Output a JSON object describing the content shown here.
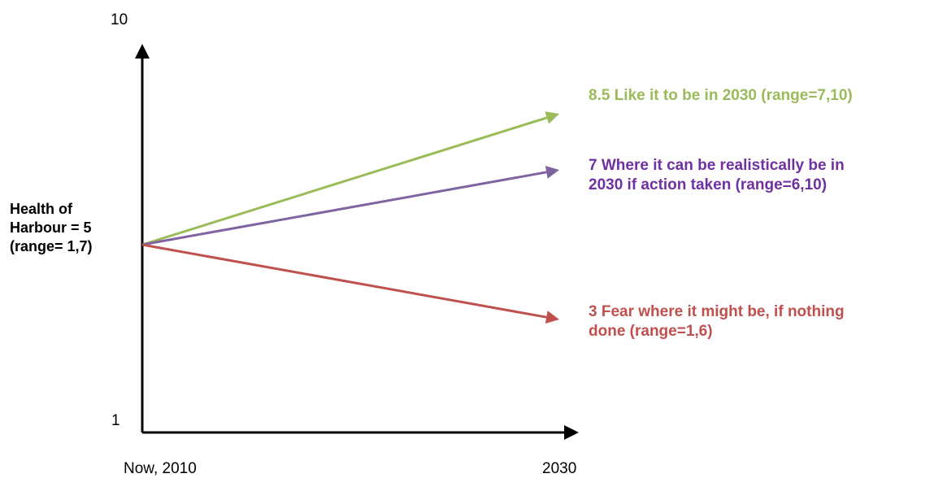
{
  "chart_data": {
    "type": "line",
    "title": "",
    "x": [
      "Now, 2010",
      "2030"
    ],
    "y_ticks": [
      "10",
      "1"
    ],
    "ylim": [
      1,
      10
    ],
    "ylabel": "",
    "start": {
      "value": 5,
      "label_lines": [
        "Health of",
        "Harbour = 5",
        "(range= 1,7)"
      ]
    },
    "series": [
      {
        "values": [
          5,
          8.5
        ],
        "color": "#9bbb59",
        "label_lines": [
          "8.5  Like it to be in 2030 (range=7,10)"
        ]
      },
      {
        "values": [
          5,
          7
        ],
        "color": "#7030a0",
        "line_color": "#8064a2",
        "label_lines": [
          "7  Where it can be realistically be in",
          "2030 if action taken (range=6,10)"
        ]
      },
      {
        "values": [
          5,
          3
        ],
        "color": "#c0504d",
        "label_lines": [
          "3  Fear where it might be, if nothing",
          "done (range=1,6)"
        ]
      }
    ],
    "grid": false,
    "legend": "none"
  }
}
